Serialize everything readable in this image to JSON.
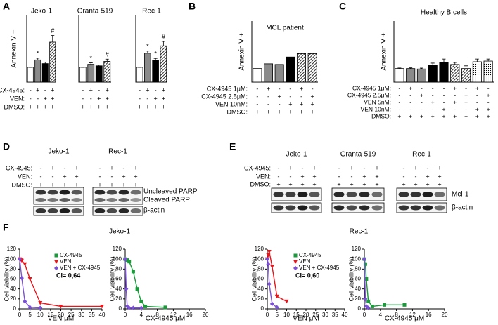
{
  "panel_labels": [
    "A",
    "B",
    "C",
    "D",
    "E",
    "F"
  ],
  "chart_data": [
    {
      "type": "bar",
      "title": "Jeko-1",
      "ylabel": "Annexin V +",
      "ylim": [
        0,
        4.5
      ],
      "values": [
        1,
        1.5,
        1.25,
        2.7
      ],
      "errors": [
        0,
        0.12,
        0.1,
        0.45
      ],
      "annotations": [
        null,
        "*",
        null,
        "#"
      ],
      "fills": [
        "white",
        "gray",
        "black",
        "hatch"
      ],
      "condition_labels": [
        "CX-4945:",
        "VEN:",
        "DMSO:"
      ],
      "signs": [
        [
          "-",
          "+",
          "-",
          "+"
        ],
        [
          "-",
          "-",
          "+",
          "+"
        ],
        [
          "+",
          "+",
          "+",
          "+"
        ]
      ]
    },
    {
      "type": "bar",
      "title": "Granta-519",
      "ylim": [
        0,
        4.5
      ],
      "values": [
        1,
        1.2,
        1.1,
        1.4
      ],
      "errors": [
        0,
        0.1,
        0.06,
        0.15
      ],
      "annotations": [
        null,
        "*",
        null,
        "#"
      ],
      "fills": [
        "white",
        "gray",
        "black",
        "hatch"
      ],
      "signs": [
        [
          "-",
          "+",
          "-",
          "+"
        ],
        [
          "-",
          "-",
          "+",
          "+"
        ],
        [
          "+",
          "+",
          "+",
          "+"
        ]
      ]
    },
    {
      "type": "bar",
      "title": "Rec-1",
      "ylim": [
        0,
        4.5
      ],
      "values": [
        1,
        1.95,
        1.45,
        2.45
      ],
      "errors": [
        0,
        0.15,
        0.15,
        0.3
      ],
      "annotations": [
        null,
        "*",
        "*",
        "#"
      ],
      "fills": [
        "white",
        "gray",
        "black",
        "hatch"
      ],
      "signs": [
        [
          "-",
          "+",
          "-",
          "+"
        ],
        [
          "-",
          "-",
          "+",
          "+"
        ],
        [
          "+",
          "+",
          "+",
          "+"
        ]
      ]
    },
    {
      "type": "bar",
      "title": "MCL patient",
      "ylabel": "Annexin V +",
      "ylim": [
        0,
        4.5
      ],
      "values": [
        1,
        1.35,
        1.3,
        1.85,
        2.1,
        2.1
      ],
      "fills": [
        "white",
        "gray",
        "gray",
        "black",
        "hatch",
        "hatch"
      ],
      "condition_labels": [
        "CX-4945 1μM:",
        "CX-4945 2.5μM:",
        "VEN 10nM:",
        "DMSO:"
      ],
      "signs": [
        [
          "-",
          "+",
          "-",
          "-",
          "+",
          "-"
        ],
        [
          "-",
          "-",
          "+",
          "-",
          "-",
          "+"
        ],
        [
          "-",
          "-",
          "-",
          "+",
          "+",
          "+"
        ],
        [
          "+",
          "+",
          "+",
          "+",
          "+",
          "+"
        ]
      ]
    },
    {
      "type": "bar",
      "title": "Healthy B cells",
      "ylabel": "Annexin V +",
      "ylim": [
        0,
        4.5
      ],
      "values": [
        1,
        1,
        0.97,
        1.25,
        1.45,
        1.3,
        1.0,
        1.5,
        1.55
      ],
      "errors": [
        0.04,
        0.05,
        0.06,
        0.15,
        0.25,
        0.15,
        0.2,
        0.2,
        0.15
      ],
      "fills": [
        "white",
        "gray",
        "gray",
        "black",
        "black",
        "hatch",
        "hatch",
        "dots",
        "dots"
      ],
      "condition_labels": [
        "CX-4945 1μM:",
        "CX-4945 2.5μM:",
        "VEN 5nM:",
        "VEN 10nM:",
        "DMSO:"
      ],
      "signs": [
        [
          "-",
          "+",
          "-",
          "-",
          "-",
          "+",
          "-",
          "+",
          "-"
        ],
        [
          "-",
          "-",
          "+",
          "-",
          "-",
          "-",
          "+",
          "-",
          "+"
        ],
        [
          "-",
          "-",
          "-",
          "+",
          "-",
          "+",
          "+",
          "-",
          "-"
        ],
        [
          "-",
          "-",
          "-",
          "-",
          "+",
          "-",
          "-",
          "+",
          "+"
        ],
        [
          "+",
          "+",
          "+",
          "+",
          "+",
          "+",
          "+",
          "+",
          "+"
        ]
      ]
    },
    {
      "type": "line",
      "title": "Jeko-1",
      "xlabel": "VEN μM",
      "ylabel": "Cell viability (%)",
      "xlim": [
        0,
        40
      ],
      "xticks": [
        0,
        5,
        10,
        15,
        20,
        25,
        30,
        35,
        40
      ],
      "ylim": [
        0,
        120
      ],
      "yticks": [
        0,
        20,
        40,
        60,
        80,
        100,
        120
      ],
      "legend": [
        {
          "name": "CX-4945",
          "color": "#1a9a3a",
          "marker": "square"
        },
        {
          "name": "VEN",
          "color": "#e8141a",
          "marker": "triangle"
        },
        {
          "name": "VEN + CX-4945",
          "color": "#7b4fd6",
          "marker": "diamond"
        }
      ],
      "annotation": "CI= 0,64",
      "series": [
        {
          "color": "#e8141a",
          "marker": "triangle",
          "x": [
            0,
            0.5,
            1,
            2.5,
            5,
            10,
            20,
            40
          ],
          "values": [
            100,
            99,
            97,
            90,
            60,
            12,
            5,
            5
          ]
        },
        {
          "color": "#7b4fd6",
          "marker": "diamond",
          "x": [
            0,
            1,
            2.5,
            5,
            10
          ],
          "values": [
            100,
            62,
            15,
            3,
            2
          ]
        }
      ]
    },
    {
      "type": "line",
      "xlabel": "CX-4945 μM",
      "ylabel": "Cell viability (%)",
      "xlim": [
        0,
        20
      ],
      "xticks": [
        0,
        4,
        8,
        12,
        16,
        20
      ],
      "ylim": [
        0,
        120
      ],
      "yticks": [
        0,
        20,
        40,
        60,
        80,
        100,
        120
      ],
      "series": [
        {
          "color": "#1a9a3a",
          "marker": "square",
          "x": [
            0,
            0.5,
            1,
            2,
            3,
            4,
            5,
            10
          ],
          "values": [
            100,
            98,
            95,
            75,
            40,
            15,
            5,
            3
          ]
        },
        {
          "color": "#7b4fd6",
          "marker": "diamond",
          "x": [
            0,
            0.25,
            0.5,
            1,
            2,
            4
          ],
          "values": [
            100,
            40,
            5,
            2,
            2,
            2
          ]
        }
      ]
    },
    {
      "type": "line",
      "title": "Rec-1",
      "xlabel": "VEN μM",
      "ylabel": "Cell viability (%)",
      "xlim": [
        0,
        40
      ],
      "xticks": [
        0,
        5,
        10,
        15,
        20,
        25,
        30,
        35,
        40
      ],
      "ylim": [
        0,
        120
      ],
      "yticks": [
        0,
        20,
        40,
        60,
        80,
        100,
        120
      ],
      "legend": [
        {
          "name": "CX-4945",
          "color": "#1a9a3a",
          "marker": "square"
        },
        {
          "name": "VEN",
          "color": "#e8141a",
          "marker": "triangle"
        },
        {
          "name": "VEN + CX-4945",
          "color": "#7b4fd6",
          "marker": "diamond"
        }
      ],
      "annotation": "CI= 0,60",
      "series": [
        {
          "color": "#e8141a",
          "marker": "triangle",
          "x": [
            0,
            0.5,
            1,
            2.5,
            5,
            10
          ],
          "values": [
            100,
            108,
            115,
            85,
            25,
            15
          ]
        },
        {
          "color": "#7b4fd6",
          "marker": "diamond",
          "x": [
            0,
            0.5,
            1,
            2.5,
            5
          ],
          "values": [
            100,
            90,
            50,
            10,
            3
          ]
        }
      ]
    },
    {
      "type": "line",
      "xlabel": "CX-4945 μM",
      "ylabel": "Cell viability (%)",
      "xlim": [
        0,
        20
      ],
      "xticks": [
        0,
        4,
        8,
        12,
        16,
        20
      ],
      "ylim": [
        0,
        120
      ],
      "yticks": [
        0,
        20,
        40,
        60,
        80,
        100,
        120
      ],
      "series": [
        {
          "color": "#1a9a3a",
          "marker": "square",
          "x": [
            0,
            0.25,
            0.5,
            1,
            2,
            5,
            10
          ],
          "values": [
            100,
            90,
            60,
            15,
            5,
            8,
            8
          ]
        },
        {
          "color": "#7b4fd6",
          "marker": "diamond",
          "x": [
            0,
            0.25,
            0.5,
            1
          ],
          "values": [
            100,
            20,
            5,
            2
          ]
        }
      ]
    }
  ],
  "blots": [
    {
      "conditions": [
        "CX-4945:",
        "VEN:",
        "DMSO:"
      ],
      "bands": [
        "Uncleaved PARP",
        "Cleaved PARP",
        "β-actin"
      ],
      "cells": [
        {
          "name": "Jeko-1",
          "signs": [
            [
              "-",
              "+",
              "-",
              "+"
            ],
            [
              "-",
              "-",
              "+",
              "+"
            ],
            [
              "+",
              "+",
              "+",
              "+"
            ]
          ]
        },
        {
          "name": "Rec-1",
          "signs": [
            [
              "-",
              "+",
              "-",
              "+"
            ],
            [
              "-",
              "-",
              "+",
              "+"
            ],
            [
              "+",
              "+",
              "+",
              "+"
            ]
          ]
        }
      ]
    },
    {
      "conditions": [
        "CX-4945:",
        "VEN:",
        "DMSO:"
      ],
      "bands": [
        "Mcl-1",
        "β-actin"
      ],
      "cells": [
        {
          "name": "Jeko-1",
          "signs": [
            [
              "-",
              "+",
              "-",
              "+"
            ],
            [
              "-",
              "-",
              "+",
              "+"
            ],
            [
              "+",
              "+",
              "+",
              "+"
            ]
          ]
        },
        {
          "name": "Granta-519",
          "signs": [
            [
              "-",
              "+",
              "-",
              "+"
            ],
            [
              "-",
              "-",
              "+",
              "+"
            ],
            [
              "+",
              "+",
              "+",
              "+"
            ]
          ]
        },
        {
          "name": "Rec-1",
          "signs": [
            [
              "-",
              "+",
              "-",
              "+"
            ],
            [
              "-",
              "-",
              "+",
              "+"
            ],
            [
              "+",
              "+",
              "+",
              "+"
            ]
          ]
        }
      ]
    }
  ]
}
